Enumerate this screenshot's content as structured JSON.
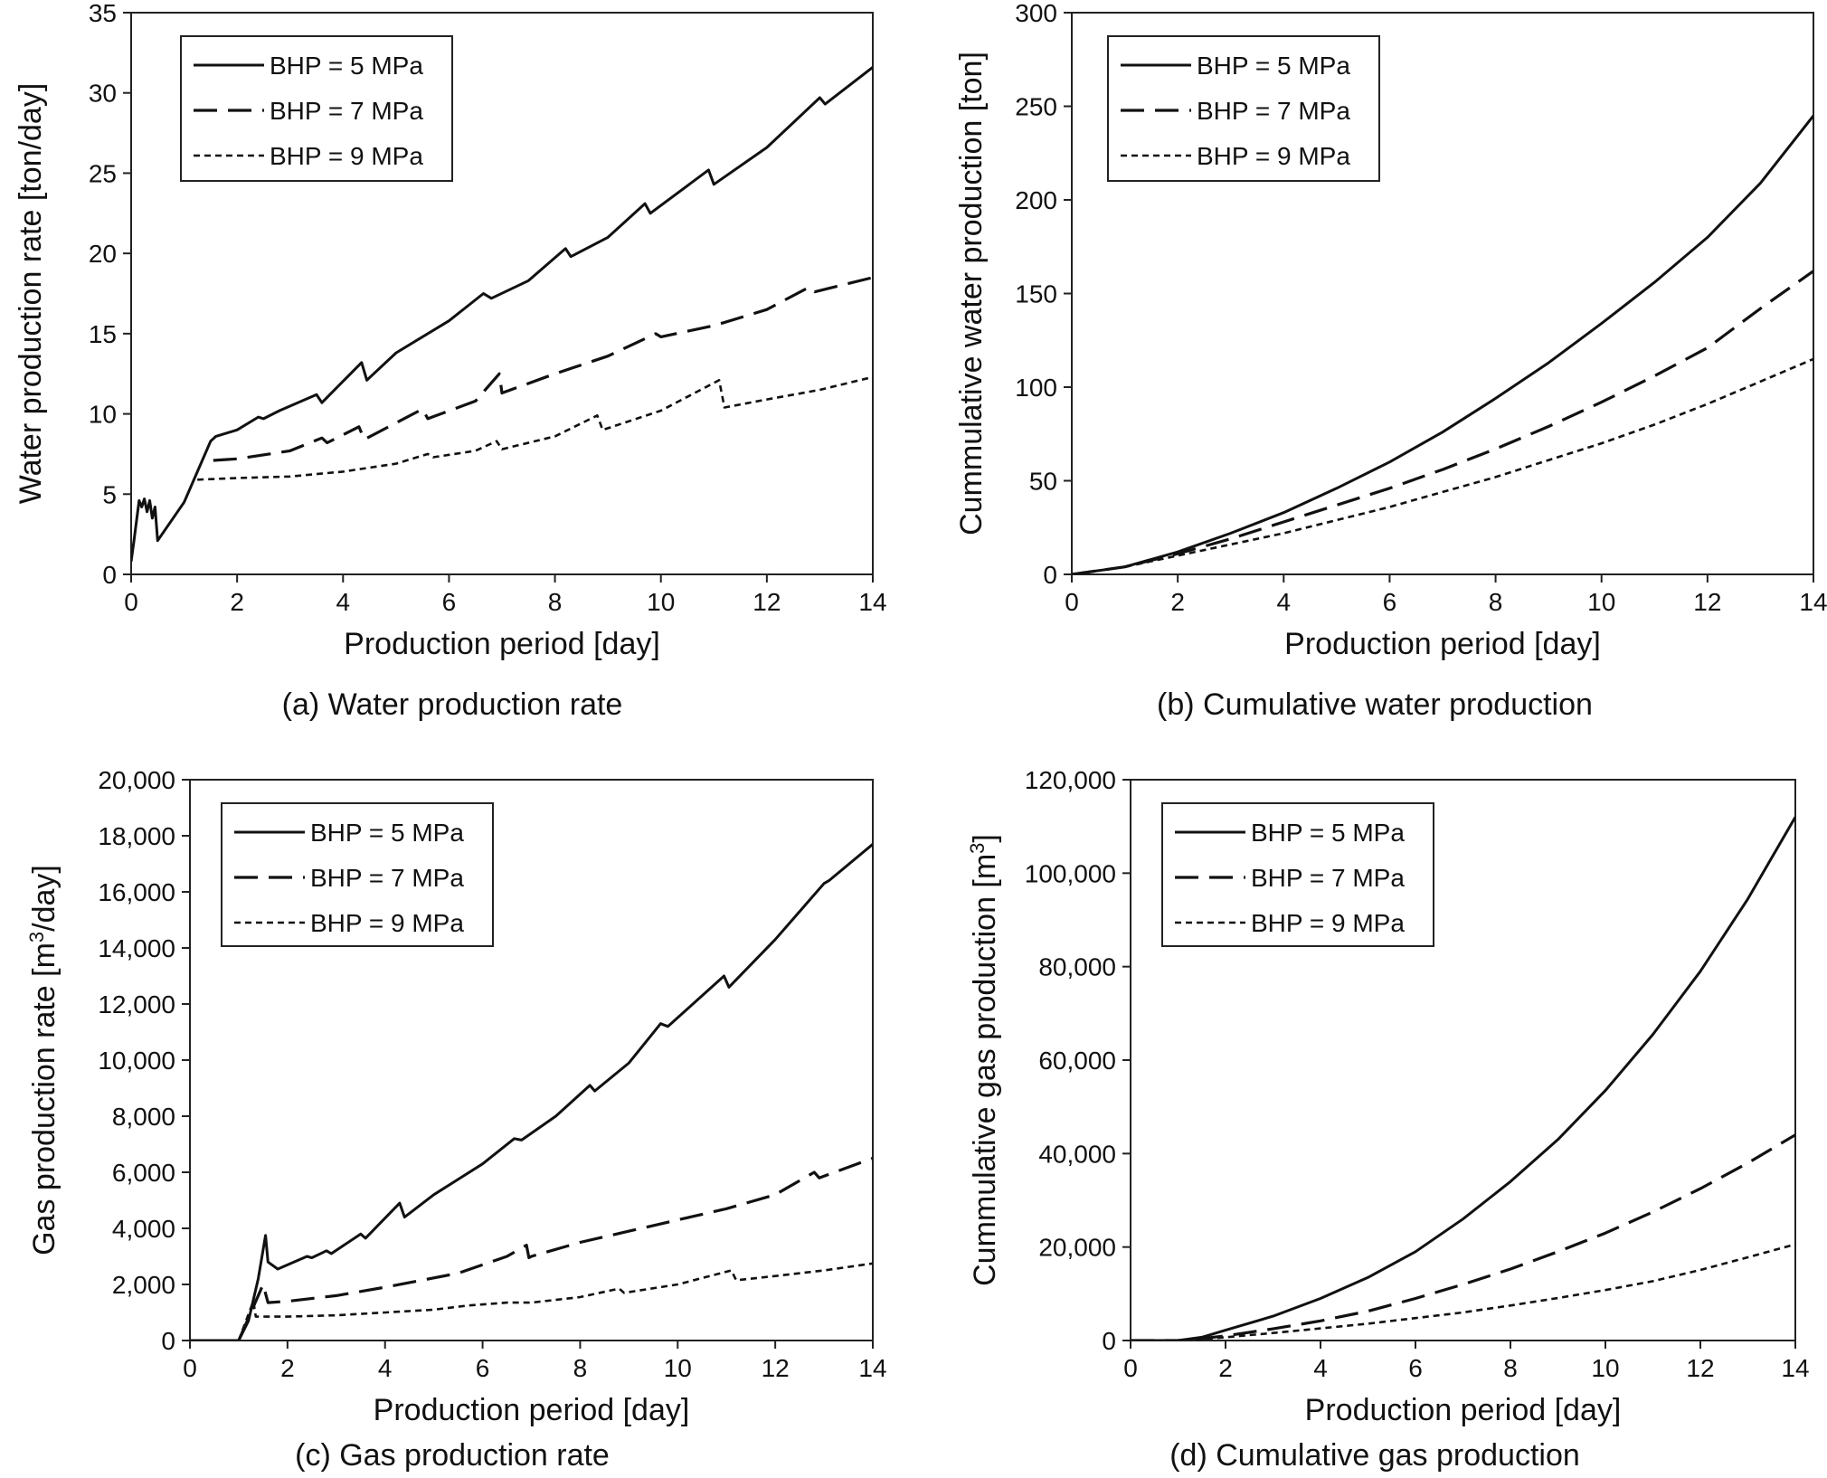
{
  "chart_data": [
    {
      "id": "a",
      "type": "line",
      "caption": "(a) Water production rate",
      "xlabel": "Production period [day]",
      "ylabel": "Water production rate [ton/day]",
      "xlim": [
        0,
        14
      ],
      "ylim": [
        0,
        35
      ],
      "xticks": [
        0,
        2,
        4,
        6,
        8,
        10,
        12,
        14
      ],
      "yticks": [
        0,
        5,
        10,
        15,
        20,
        25,
        30,
        35
      ],
      "ytick_labels": [
        "0",
        "5",
        "10",
        "15",
        "20",
        "25",
        "30",
        "35"
      ],
      "legend_position": "top-left",
      "series": [
        {
          "name": "BHP = 5 MPa",
          "style": "solid",
          "x": [
            0,
            0.05,
            0.15,
            0.2,
            0.25,
            0.3,
            0.35,
            0.4,
            0.45,
            0.5,
            0.5,
            1.0,
            1.5,
            1.6,
            2.0,
            2.4,
            2.5,
            2.8,
            3.5,
            3.6,
            4.35,
            4.45,
            5.0,
            6.0,
            6.65,
            6.8,
            7.5,
            8.2,
            8.3,
            9.0,
            9.7,
            9.8,
            10.9,
            11.0,
            12.0,
            13.0,
            13.1,
            14.0
          ],
          "y": [
            0.8,
            2.0,
            4.6,
            4.2,
            4.7,
            3.9,
            4.6,
            3.5,
            4.2,
            2.1,
            2.1,
            4.5,
            8.3,
            8.6,
            9.0,
            9.8,
            9.7,
            10.2,
            11.2,
            10.7,
            13.2,
            12.1,
            13.8,
            15.8,
            17.5,
            17.2,
            18.3,
            20.3,
            19.8,
            21.0,
            23.1,
            22.5,
            25.2,
            24.3,
            26.6,
            29.7,
            29.3,
            31.6
          ]
        },
        {
          "name": "BHP = 7 MPa",
          "style": "dashed",
          "x": [
            1.55,
            2.0,
            3.0,
            3.6,
            3.7,
            4.3,
            4.4,
            5.5,
            5.6,
            6.5,
            6.95,
            7.0,
            8.0,
            9.0,
            9.9,
            10.0,
            11.0,
            12.0,
            12.8,
            12.9,
            14.0
          ],
          "y": [
            7.1,
            7.2,
            7.7,
            8.5,
            8.2,
            9.2,
            8.4,
            10.3,
            9.7,
            10.8,
            12.5,
            11.3,
            12.5,
            13.6,
            15.0,
            14.8,
            15.5,
            16.5,
            17.9,
            17.6,
            18.5
          ]
        },
        {
          "name": "BHP = 9 MPa",
          "style": "dotted",
          "x": [
            1.25,
            2.0,
            3.0,
            4.0,
            5.0,
            5.6,
            5.7,
            6.5,
            6.9,
            7.0,
            8.0,
            8.8,
            8.9,
            10.0,
            11.1,
            11.2,
            12.0,
            13.0,
            14.0
          ],
          "y": [
            5.9,
            6.0,
            6.1,
            6.4,
            6.9,
            7.5,
            7.3,
            7.7,
            8.3,
            7.8,
            8.6,
            9.9,
            9.0,
            10.2,
            12.1,
            10.4,
            10.9,
            11.5,
            12.3
          ]
        }
      ]
    },
    {
      "id": "b",
      "type": "line",
      "caption": "(b) Cumulative water production",
      "xlabel": "Production period [day]",
      "ylabel": "Cummulative water production [ton]",
      "xlim": [
        0,
        14
      ],
      "ylim": [
        0,
        300
      ],
      "xticks": [
        0,
        2,
        4,
        6,
        8,
        10,
        12,
        14
      ],
      "yticks": [
        0,
        50,
        100,
        150,
        200,
        250,
        300
      ],
      "ytick_labels": [
        "0",
        "50",
        "100",
        "150",
        "200",
        "250",
        "300"
      ],
      "legend_position": "top-left",
      "series": [
        {
          "name": "BHP = 5 MPa",
          "style": "solid",
          "x": [
            0,
            1,
            2,
            3,
            4,
            5,
            6,
            7,
            8,
            9,
            10,
            11,
            12,
            13,
            14
          ],
          "y": [
            0,
            4,
            12,
            22,
            33,
            46,
            60,
            76,
            94,
            113,
            134,
            156,
            180,
            209,
            245
          ]
        },
        {
          "name": "BHP = 7 MPa",
          "style": "dashed",
          "x": [
            0,
            1,
            2,
            3,
            4,
            5,
            6,
            7,
            8,
            9,
            10,
            11,
            12,
            13,
            14
          ],
          "y": [
            0,
            4,
            11,
            19,
            28,
            37,
            46,
            56,
            67,
            79,
            92,
            106,
            121,
            142,
            162
          ]
        },
        {
          "name": "BHP = 9 MPa",
          "style": "dotted",
          "x": [
            0,
            1,
            2,
            3,
            4,
            5,
            6,
            7,
            8,
            9,
            10,
            11,
            12,
            13,
            14
          ],
          "y": [
            0,
            4,
            10,
            16,
            22,
            29,
            36,
            44,
            52,
            61,
            70,
            80,
            91,
            103,
            115
          ]
        }
      ]
    },
    {
      "id": "c",
      "type": "line",
      "caption": "(c) Gas production rate",
      "xlabel": "Production period [day]",
      "ylabel_pre": "Gas production rate [m",
      "ylabel_sup": "3",
      "ylabel_post": "/day]",
      "xlim": [
        0,
        14
      ],
      "ylim": [
        0,
        20000
      ],
      "xticks": [
        0,
        2,
        4,
        6,
        8,
        10,
        12,
        14
      ],
      "yticks": [
        0,
        2000,
        4000,
        6000,
        8000,
        10000,
        12000,
        14000,
        16000,
        18000,
        20000
      ],
      "ytick_labels": [
        "0",
        "2,000",
        "4,000",
        "6,000",
        "8,000",
        "10,000",
        "12,000",
        "14,000",
        "16,000",
        "18,000",
        "20,000"
      ],
      "legend_position": "top-left",
      "series": [
        {
          "name": "BHP = 5 MPa",
          "style": "solid",
          "x": [
            0,
            1.0,
            1.2,
            1.4,
            1.55,
            1.6,
            1.8,
            2.4,
            2.5,
            2.8,
            2.9,
            3.5,
            3.6,
            4.3,
            4.4,
            5.0,
            6.0,
            6.65,
            6.8,
            7.5,
            8.2,
            8.3,
            9.0,
            9.65,
            9.8,
            10.95,
            11.05,
            12.0,
            13.0,
            13.1,
            14.0
          ],
          "y": [
            0,
            0,
            700,
            2200,
            3750,
            2800,
            2550,
            3000,
            2950,
            3200,
            3100,
            3800,
            3650,
            4900,
            4400,
            5200,
            6300,
            7200,
            7150,
            8000,
            9100,
            8900,
            9900,
            11300,
            11200,
            13000,
            12600,
            14300,
            16300,
            16400,
            17700
          ]
        },
        {
          "name": "BHP = 7 MPa",
          "style": "dashed",
          "x": [
            1.0,
            1.3,
            1.5,
            1.6,
            2.0,
            3.0,
            4.0,
            5.5,
            6.5,
            6.9,
            6.95,
            7.0,
            8.0,
            9.0,
            10.0,
            11.0,
            12.0,
            12.8,
            12.9,
            14.0
          ],
          "y": [
            0,
            1200,
            2000,
            1350,
            1400,
            1600,
            1900,
            2400,
            3000,
            3400,
            2950,
            3000,
            3500,
            3900,
            4300,
            4700,
            5200,
            6000,
            5800,
            6500
          ]
        },
        {
          "name": "BHP = 9 MPa",
          "style": "dotted",
          "x": [
            1.0,
            1.3,
            1.35,
            2.0,
            3.0,
            4.0,
            5.0,
            5.7,
            6.5,
            7.0,
            8.0,
            8.8,
            8.9,
            10.0,
            11.1,
            11.2,
            12.0,
            13.0,
            14.0
          ],
          "y": [
            0,
            1400,
            850,
            850,
            900,
            1000,
            1100,
            1250,
            1350,
            1350,
            1550,
            1850,
            1700,
            2000,
            2500,
            2150,
            2300,
            2500,
            2750
          ]
        }
      ]
    },
    {
      "id": "d",
      "type": "line",
      "caption": "(d) Cumulative gas production",
      "xlabel": "Production period [day]",
      "ylabel_pre": "Cummulative gas production [m",
      "ylabel_sup": "3",
      "ylabel_post": "]",
      "xlim": [
        0,
        14
      ],
      "ylim": [
        0,
        120000
      ],
      "xticks": [
        0,
        2,
        4,
        6,
        8,
        10,
        12,
        14
      ],
      "yticks": [
        0,
        20000,
        40000,
        60000,
        80000,
        100000,
        120000
      ],
      "ytick_labels": [
        "0",
        "20,000",
        "40,000",
        "60,000",
        "80,000",
        "100,000",
        "120,000"
      ],
      "legend_position": "top-left",
      "series": [
        {
          "name": "BHP = 5 MPa",
          "style": "solid",
          "x": [
            0,
            1,
            1.5,
            2,
            3,
            4,
            5,
            6,
            7,
            8,
            9,
            10,
            11,
            12,
            13,
            14
          ],
          "y": [
            0,
            0,
            700,
            2200,
            5200,
            9000,
            13500,
            19000,
            26000,
            34000,
            43000,
            53500,
            65500,
            79000,
            94500,
            112000
          ]
        },
        {
          "name": "BHP = 7 MPa",
          "style": "dashed",
          "x": [
            0,
            1,
            1.5,
            2,
            3,
            4,
            5,
            6,
            7,
            8,
            9,
            10,
            11,
            12,
            13,
            14
          ],
          "y": [
            0,
            0,
            400,
            1000,
            2500,
            4200,
            6300,
            9000,
            12000,
            15300,
            19000,
            23000,
            27500,
            32500,
            38000,
            44000
          ]
        },
        {
          "name": "BHP = 9 MPa",
          "style": "dotted",
          "x": [
            0,
            1,
            1.5,
            2,
            3,
            4,
            5,
            6,
            7,
            8,
            9,
            10,
            11,
            12,
            13,
            14
          ],
          "y": [
            0,
            0,
            250,
            700,
            1600,
            2600,
            3600,
            4800,
            6000,
            7500,
            9100,
            10800,
            12700,
            15100,
            17800,
            20600
          ]
        }
      ]
    }
  ]
}
